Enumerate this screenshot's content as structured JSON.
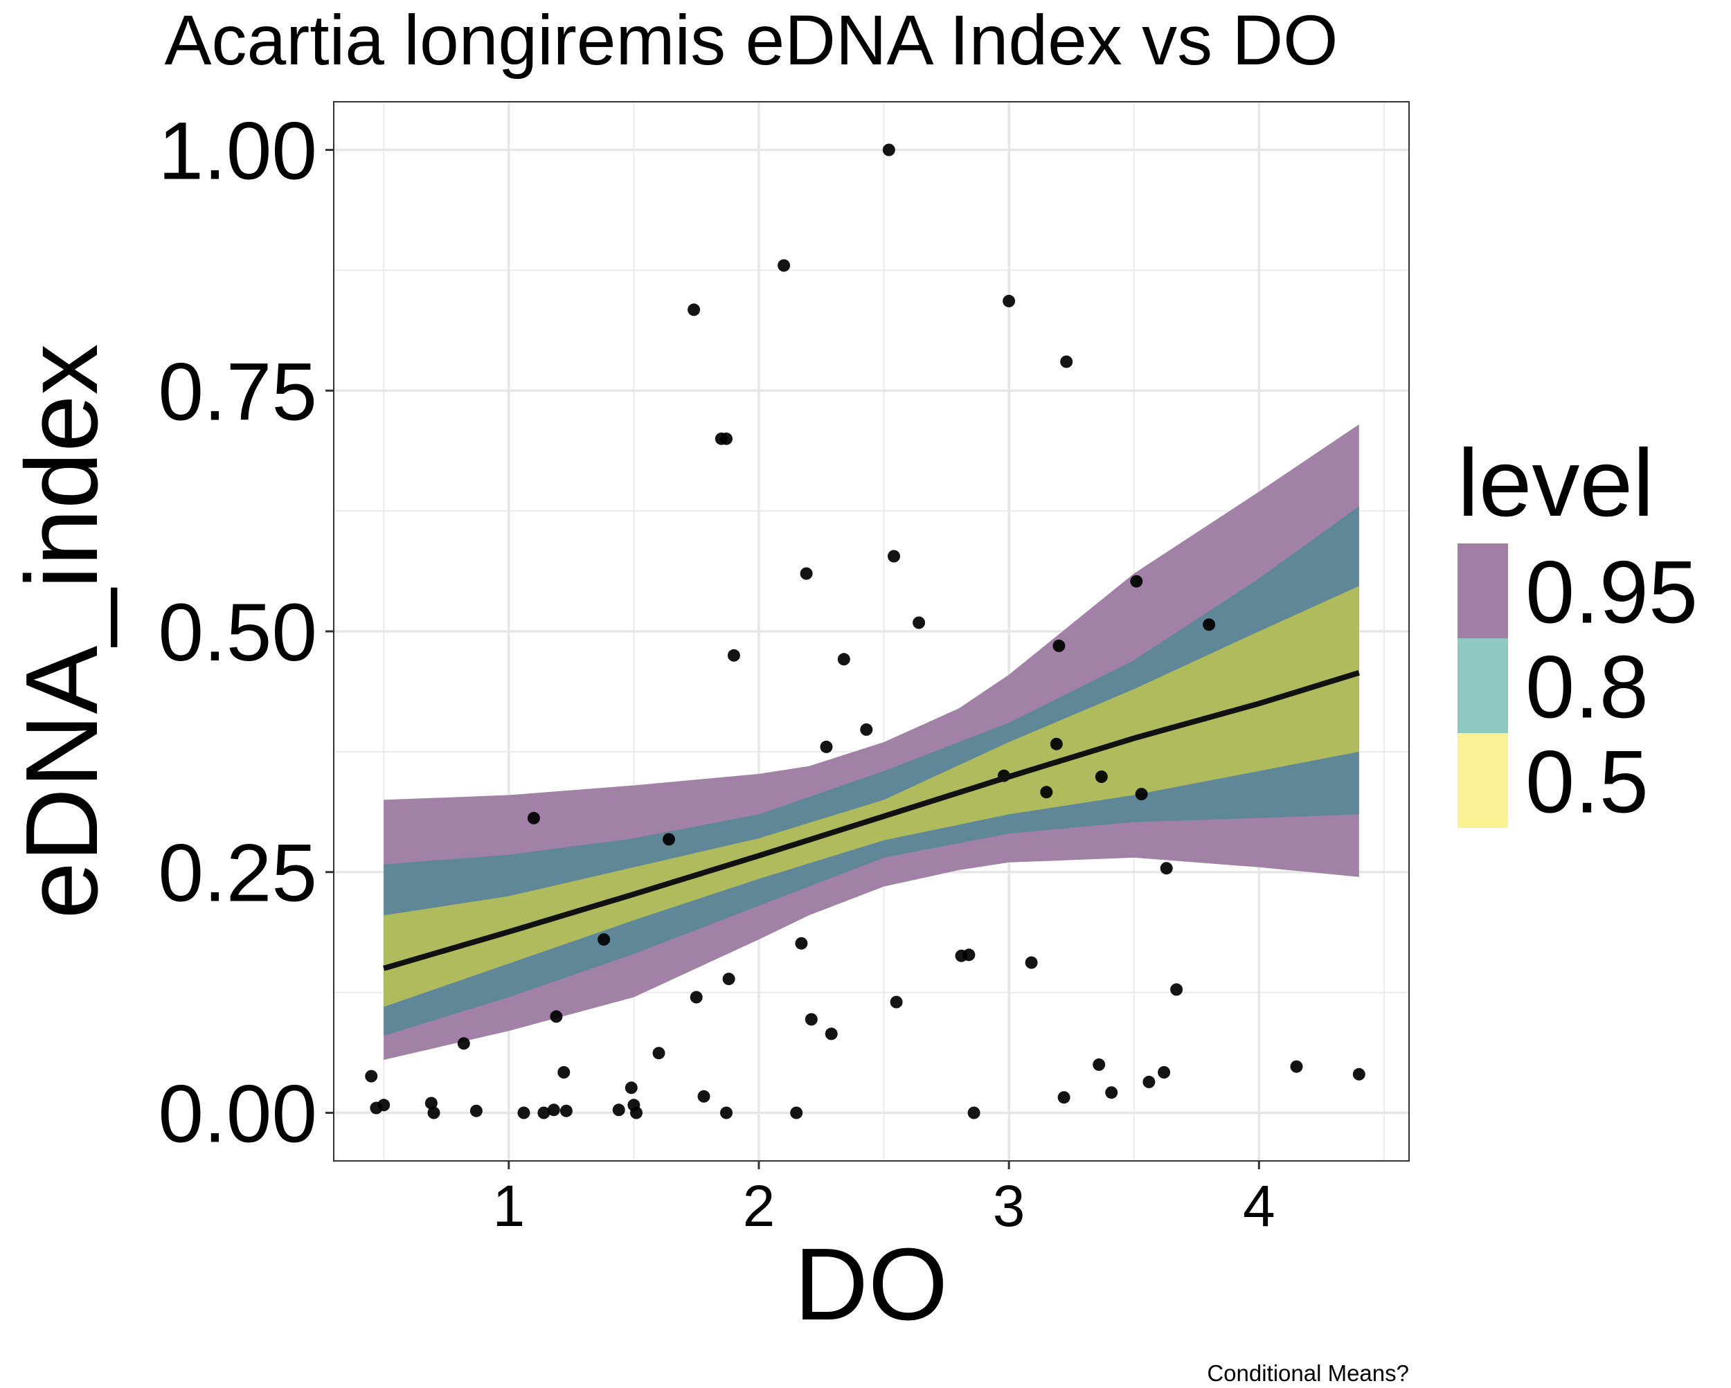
{
  "chart_data": {
    "type": "scatter",
    "title": "Acartia longiremis eDNA Index vs DO",
    "xlabel": "DO",
    "ylabel": "eDNA_index",
    "caption": "Conditional Means?",
    "xlim": [
      0.3,
      4.6
    ],
    "ylim": [
      -0.05,
      1.05
    ],
    "x_ticks": [
      1,
      2,
      3,
      4
    ],
    "x_tick_labels": [
      "1",
      "2",
      "3",
      "4"
    ],
    "y_ticks": [
      0,
      0.25,
      0.5,
      0.75,
      1
    ],
    "y_tick_labels": [
      "0.00",
      "0.25",
      "0.50",
      "0.75",
      "1.00"
    ],
    "grid": true,
    "legend": {
      "title": "level",
      "position": "right",
      "entries": [
        {
          "label": "0.95",
          "color": "#a27ea6"
        },
        {
          "label": "0.8",
          "color": "#8fc7c1"
        },
        {
          "label": "0.5",
          "color": "#fbf195"
        }
      ]
    },
    "ribbon_colors": {
      "0.95": "#a181a5",
      "0.8": "#5f8798",
      "0.5": "#b0bb5e"
    },
    "mean_line": {
      "color": "#111111",
      "x": [
        0.5,
        1.0,
        1.5,
        2.0,
        2.5,
        3.0,
        3.5,
        4.0,
        4.4
      ],
      "y": [
        0.15,
        0.188,
        0.227,
        0.267,
        0.308,
        0.349,
        0.389,
        0.425,
        0.457
      ]
    },
    "ribbons": [
      {
        "level": "0.95",
        "x": [
          0.5,
          1.0,
          1.5,
          2.0,
          2.2,
          2.5,
          2.8,
          3.0,
          3.5,
          4.0,
          4.4
        ],
        "lower": [
          0.055,
          0.085,
          0.12,
          0.18,
          0.205,
          0.235,
          0.252,
          0.26,
          0.265,
          0.255,
          0.245
        ],
        "upper": [
          0.325,
          0.33,
          0.34,
          0.352,
          0.36,
          0.385,
          0.42,
          0.455,
          0.56,
          0.645,
          0.715
        ]
      },
      {
        "level": "0.8",
        "x": [
          0.5,
          1.0,
          1.5,
          2.0,
          2.5,
          3.0,
          3.5,
          4.0,
          4.4
        ],
        "lower": [
          0.08,
          0.12,
          0.165,
          0.215,
          0.265,
          0.29,
          0.302,
          0.306,
          0.31
        ],
        "upper": [
          0.258,
          0.268,
          0.285,
          0.31,
          0.355,
          0.405,
          0.47,
          0.555,
          0.63
        ]
      },
      {
        "level": "0.5",
        "x": [
          0.5,
          1.0,
          1.5,
          2.0,
          2.5,
          3.0,
          3.5,
          4.0,
          4.4
        ],
        "lower": [
          0.11,
          0.155,
          0.2,
          0.243,
          0.283,
          0.31,
          0.33,
          0.355,
          0.375
        ],
        "upper": [
          0.205,
          0.225,
          0.255,
          0.285,
          0.325,
          0.385,
          0.44,
          0.5,
          0.547
        ]
      }
    ],
    "points": [
      {
        "x": 0.45,
        "y": 0.038
      },
      {
        "x": 0.47,
        "y": 0.005
      },
      {
        "x": 0.5,
        "y": 0.008
      },
      {
        "x": 0.69,
        "y": 0.01
      },
      {
        "x": 0.7,
        "y": 0.0
      },
      {
        "x": 0.82,
        "y": 0.072
      },
      {
        "x": 0.87,
        "y": 0.002
      },
      {
        "x": 1.06,
        "y": 0.0
      },
      {
        "x": 1.1,
        "y": 0.306
      },
      {
        "x": 1.14,
        "y": 0.0
      },
      {
        "x": 1.18,
        "y": 0.003
      },
      {
        "x": 1.19,
        "y": 0.1
      },
      {
        "x": 1.22,
        "y": 0.042
      },
      {
        "x": 1.23,
        "y": 0.002
      },
      {
        "x": 1.38,
        "y": 0.18
      },
      {
        "x": 1.44,
        "y": 0.003
      },
      {
        "x": 1.49,
        "y": 0.026
      },
      {
        "x": 1.5,
        "y": 0.008
      },
      {
        "x": 1.51,
        "y": 0.0
      },
      {
        "x": 1.6,
        "y": 0.062
      },
      {
        "x": 1.64,
        "y": 0.284
      },
      {
        "x": 1.74,
        "y": 0.834
      },
      {
        "x": 1.75,
        "y": 0.12
      },
      {
        "x": 1.78,
        "y": 0.017
      },
      {
        "x": 1.85,
        "y": 0.7
      },
      {
        "x": 1.87,
        "y": 0.7
      },
      {
        "x": 1.87,
        "y": 0.0
      },
      {
        "x": 1.88,
        "y": 0.139
      },
      {
        "x": 1.9,
        "y": 0.475
      },
      {
        "x": 2.1,
        "y": 0.88
      },
      {
        "x": 2.15,
        "y": 0.0
      },
      {
        "x": 2.17,
        "y": 0.176
      },
      {
        "x": 2.19,
        "y": 0.56
      },
      {
        "x": 2.21,
        "y": 0.097
      },
      {
        "x": 2.27,
        "y": 0.38
      },
      {
        "x": 2.29,
        "y": 0.082
      },
      {
        "x": 2.34,
        "y": 0.471
      },
      {
        "x": 2.43,
        "y": 0.398
      },
      {
        "x": 2.52,
        "y": 1.0
      },
      {
        "x": 2.54,
        "y": 0.578
      },
      {
        "x": 2.55,
        "y": 0.115
      },
      {
        "x": 2.64,
        "y": 0.509
      },
      {
        "x": 2.81,
        "y": 0.163
      },
      {
        "x": 2.84,
        "y": 0.164
      },
      {
        "x": 2.86,
        "y": 0.0
      },
      {
        "x": 2.98,
        "y": 0.35
      },
      {
        "x": 3.0,
        "y": 0.843
      },
      {
        "x": 3.09,
        "y": 0.156
      },
      {
        "x": 3.15,
        "y": 0.333
      },
      {
        "x": 3.19,
        "y": 0.383
      },
      {
        "x": 3.2,
        "y": 0.485
      },
      {
        "x": 3.22,
        "y": 0.016
      },
      {
        "x": 3.23,
        "y": 0.78
      },
      {
        "x": 3.36,
        "y": 0.05
      },
      {
        "x": 3.37,
        "y": 0.349
      },
      {
        "x": 3.41,
        "y": 0.021
      },
      {
        "x": 3.51,
        "y": 0.552
      },
      {
        "x": 3.53,
        "y": 0.331
      },
      {
        "x": 3.56,
        "y": 0.032
      },
      {
        "x": 3.62,
        "y": 0.042
      },
      {
        "x": 3.63,
        "y": 0.254
      },
      {
        "x": 3.67,
        "y": 0.128
      },
      {
        "x": 3.8,
        "y": 0.507
      },
      {
        "x": 4.15,
        "y": 0.048
      },
      {
        "x": 4.4,
        "y": 0.04
      }
    ]
  }
}
